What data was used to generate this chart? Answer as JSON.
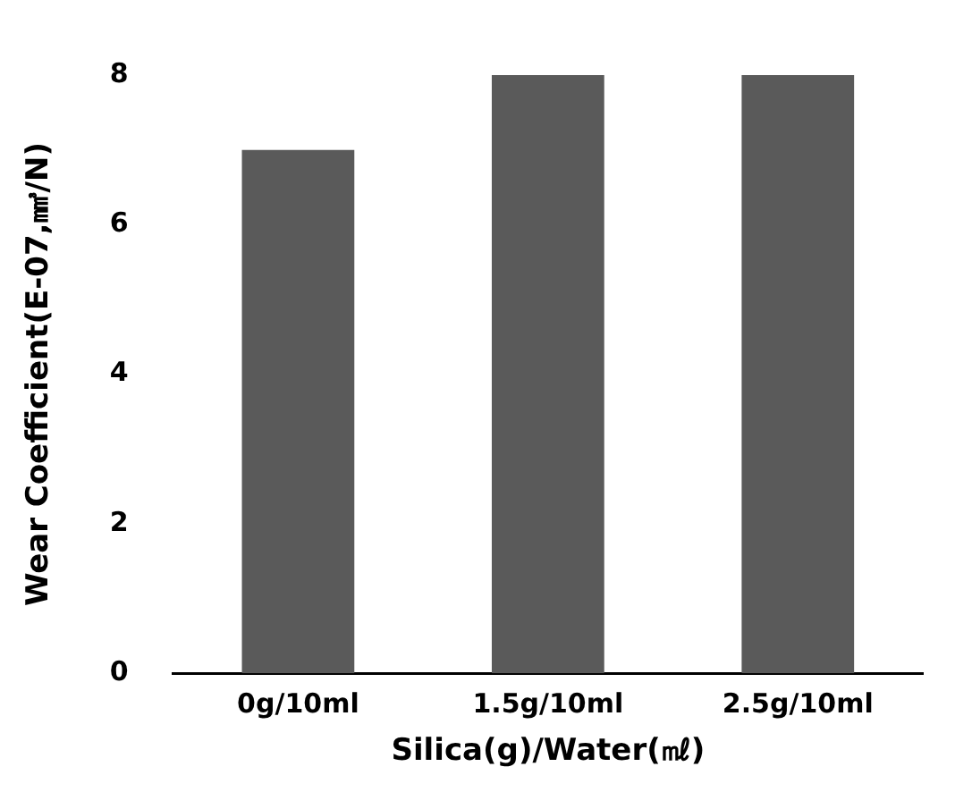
{
  "chart_data": {
    "type": "bar",
    "xlabel": "Silica(g)/Water(㎖)",
    "ylabel": "Wear Coefficient(E-07,㎣/N)",
    "categories": [
      "0g/10ml",
      "1.5g/10ml",
      "2.5g/10ml"
    ],
    "values": [
      7,
      8,
      8
    ],
    "color": "#5a5a5a",
    "ylim": [
      0,
      8
    ],
    "yticks": [
      0,
      2,
      4,
      6,
      8
    ],
    "grid": false,
    "legend": false
  }
}
